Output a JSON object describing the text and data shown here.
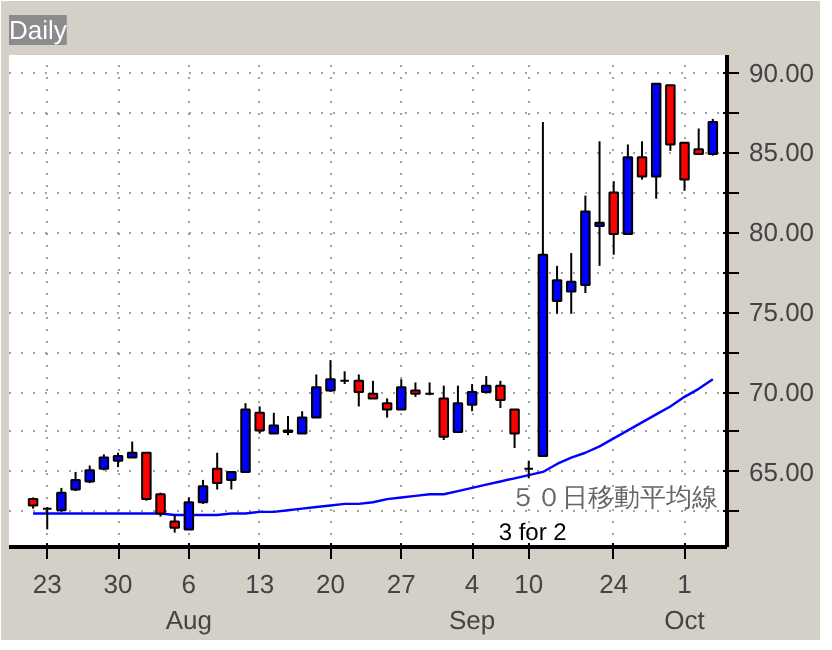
{
  "chart_data": {
    "type": "candlestick",
    "title": "Daily",
    "categories": [
      null,
      "23",
      null,
      null,
      null,
      null,
      "30",
      null,
      null,
      null,
      null,
      "6\nAug",
      null,
      null,
      null,
      null,
      "13",
      null,
      null,
      null,
      null,
      "20",
      null,
      null,
      null,
      null,
      "27",
      null,
      null,
      null,
      null,
      "4\nSep",
      null,
      null,
      null,
      "10",
      null,
      null,
      null,
      null,
      null,
      "24",
      null,
      null,
      null,
      null,
      "1\nOct",
      null,
      null
    ],
    "ohlc": [
      [
        63.3,
        63.4,
        62.7,
        62.9
      ],
      [
        62.7,
        62.8,
        61.4,
        62.7
      ],
      [
        62.6,
        64.0,
        62.5,
        63.7
      ],
      [
        63.9,
        65.0,
        63.8,
        64.5
      ],
      [
        64.4,
        65.4,
        64.3,
        65.1
      ],
      [
        65.2,
        66.1,
        65.1,
        65.9
      ],
      [
        65.7,
        66.2,
        65.3,
        66.0
      ],
      [
        65.9,
        66.9,
        65.9,
        66.2
      ],
      [
        66.2,
        66.2,
        63.2,
        63.3
      ],
      [
        63.6,
        63.7,
        62.2,
        62.4
      ],
      [
        61.9,
        62.3,
        61.2,
        61.5
      ],
      [
        61.4,
        63.4,
        61.4,
        63.1
      ],
      [
        63.1,
        64.5,
        63.0,
        64.1
      ],
      [
        65.2,
        66.2,
        63.9,
        64.3
      ],
      [
        64.5,
        65.0,
        63.9,
        65.0
      ],
      [
        65.0,
        69.3,
        65.0,
        68.9
      ],
      [
        68.7,
        69.1,
        67.4,
        67.6
      ],
      [
        67.4,
        68.7,
        67.4,
        67.9
      ],
      [
        67.5,
        68.5,
        67.3,
        67.6
      ],
      [
        67.4,
        68.8,
        67.4,
        68.4
      ],
      [
        68.4,
        71.1,
        68.4,
        70.3
      ],
      [
        70.1,
        72.0,
        70.0,
        70.8
      ],
      [
        70.7,
        71.3,
        70.5,
        70.7
      ],
      [
        70.7,
        71.1,
        69.1,
        70.0
      ],
      [
        69.9,
        70.7,
        69.6,
        69.6
      ],
      [
        69.3,
        69.6,
        68.4,
        68.9
      ],
      [
        68.9,
        70.8,
        68.9,
        70.3
      ],
      [
        70.1,
        70.6,
        69.7,
        69.9
      ],
      [
        69.9,
        70.6,
        69.8,
        69.9
      ],
      [
        69.6,
        70.4,
        67.0,
        67.2
      ],
      [
        67.5,
        70.4,
        67.5,
        69.3
      ],
      [
        69.2,
        70.5,
        68.8,
        70.0
      ],
      [
        70.0,
        71.0,
        69.9,
        70.4
      ],
      [
        70.4,
        70.7,
        69.0,
        69.5
      ],
      [
        68.9,
        68.9,
        66.5,
        67.4
      ],
      [
        65.2,
        65.7,
        64.6,
        65.2
      ],
      [
        66.0,
        86.9,
        66.0,
        78.6
      ],
      [
        75.7,
        77.9,
        74.9,
        77.0
      ],
      [
        76.3,
        78.7,
        74.9,
        76.9
      ],
      [
        76.7,
        82.3,
        76.2,
        81.3
      ],
      [
        80.4,
        85.7,
        77.9,
        80.6
      ],
      [
        82.5,
        83.2,
        78.6,
        79.9
      ],
      [
        79.9,
        85.5,
        79.9,
        84.7
      ],
      [
        84.7,
        85.7,
        83.3,
        83.5
      ],
      [
        83.5,
        89.3,
        82.1,
        89.3
      ],
      [
        89.2,
        89.2,
        85.1,
        85.5
      ],
      [
        85.6,
        85.6,
        82.6,
        83.3
      ],
      [
        85.2,
        86.5,
        84.9,
        84.9
      ],
      [
        84.9,
        87.1,
        84.8,
        86.9
      ]
    ],
    "colors": [
      "#ff0000",
      "#000000",
      "#0000ff",
      "#0000ff",
      "#0000ff",
      "#0000ff",
      "#0000ff",
      "#0000ff",
      "#ff0000",
      "#ff0000",
      "#ff0000",
      "#0000ff",
      "#0000ff",
      "#ff0000",
      "#0000ff",
      "#0000ff",
      "#ff0000",
      "#0000ff",
      "#0000ff",
      "#0000ff",
      "#0000ff",
      "#0000ff",
      "#000000",
      "#ff0000",
      "#ff0000",
      "#ff0000",
      "#0000ff",
      "#ff0000",
      "#000000",
      "#ff0000",
      "#0000ff",
      "#0000ff",
      "#0000ff",
      "#ff0000",
      "#ff0000",
      "#000000",
      "#0000ff",
      "#0000ff",
      "#0000ff",
      "#0000ff",
      "#0000ff",
      "#ff0000",
      "#0000ff",
      "#ff0000",
      "#0000ff",
      "#ff0000",
      "#ff0000",
      "#ff0000",
      "#0000ff"
    ],
    "series": [
      {
        "type": "line",
        "name": "５０日移動平均線",
        "color": "#0000ff",
        "values": [
          62.4,
          62.4,
          62.4,
          62.4,
          62.4,
          62.4,
          62.4,
          62.4,
          62.4,
          62.4,
          62.3,
          62.3,
          62.3,
          62.3,
          62.4,
          62.4,
          62.5,
          62.5,
          62.6,
          62.7,
          62.8,
          62.9,
          63.0,
          63.0,
          63.1,
          63.3,
          63.4,
          63.5,
          63.6,
          63.6,
          63.8,
          64.0,
          64.2,
          64.4,
          64.6,
          64.8,
          65.0,
          65.5,
          65.9,
          66.2,
          66.6,
          67.1,
          67.6,
          68.1,
          68.6,
          69.1,
          69.7,
          70.2,
          70.8
        ]
      }
    ],
    "annotations": [
      "3 for 2"
    ],
    "ylim": [
      60.3,
      91.1
    ],
    "yticks": [
      {
        "value": 62.5,
        "label": null
      },
      {
        "value": 65,
        "label": "65.00"
      },
      {
        "value": 67.5,
        "label": null
      },
      {
        "value": 70,
        "label": "70.00"
      },
      {
        "value": 72.5,
        "label": null
      },
      {
        "value": 75,
        "label": "75.00"
      },
      {
        "value": 77.5,
        "label": null
      },
      {
        "value": 80,
        "label": "80.00"
      },
      {
        "value": 82.5,
        "label": null
      },
      {
        "value": 85,
        "label": "85.00"
      },
      {
        "value": 87.5,
        "label": null
      },
      {
        "value": 90,
        "label": "90.00"
      }
    ],
    "grid": true
  }
}
